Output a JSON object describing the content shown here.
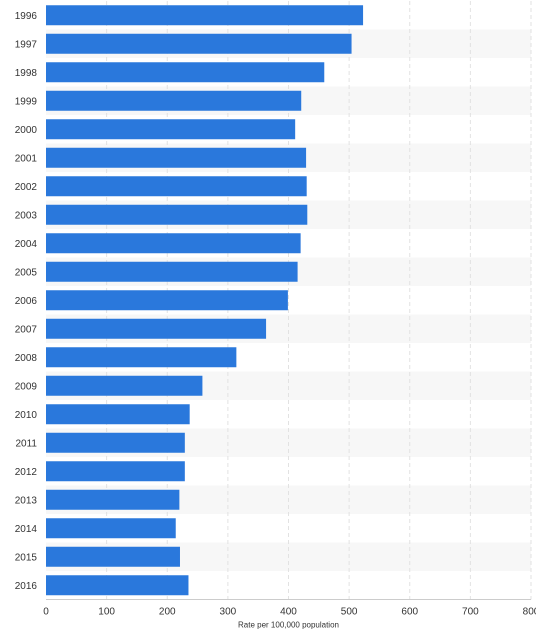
{
  "chart_data": {
    "type": "bar",
    "orientation": "horizontal",
    "title": "",
    "xlabel": "Rate per 100,000 population",
    "ylabel": "",
    "xlim": [
      0,
      800
    ],
    "x_ticks": [
      0,
      100,
      200,
      300,
      400,
      500,
      600,
      700,
      800
    ],
    "grid": true,
    "categories": [
      "1996",
      "1997",
      "1998",
      "1999",
      "2000",
      "2001",
      "2002",
      "2003",
      "2004",
      "2005",
      "2006",
      "2007",
      "2008",
      "2009",
      "2010",
      "2011",
      "2012",
      "2013",
      "2014",
      "2015",
      "2016"
    ],
    "values": [
      523,
      504,
      459,
      421,
      411,
      429,
      430,
      431,
      420,
      415,
      399,
      363,
      314,
      258,
      237,
      229,
      229,
      220,
      214,
      221,
      235
    ],
    "bar_color": "#2a78dc",
    "band_color": "#f7f7f7"
  }
}
